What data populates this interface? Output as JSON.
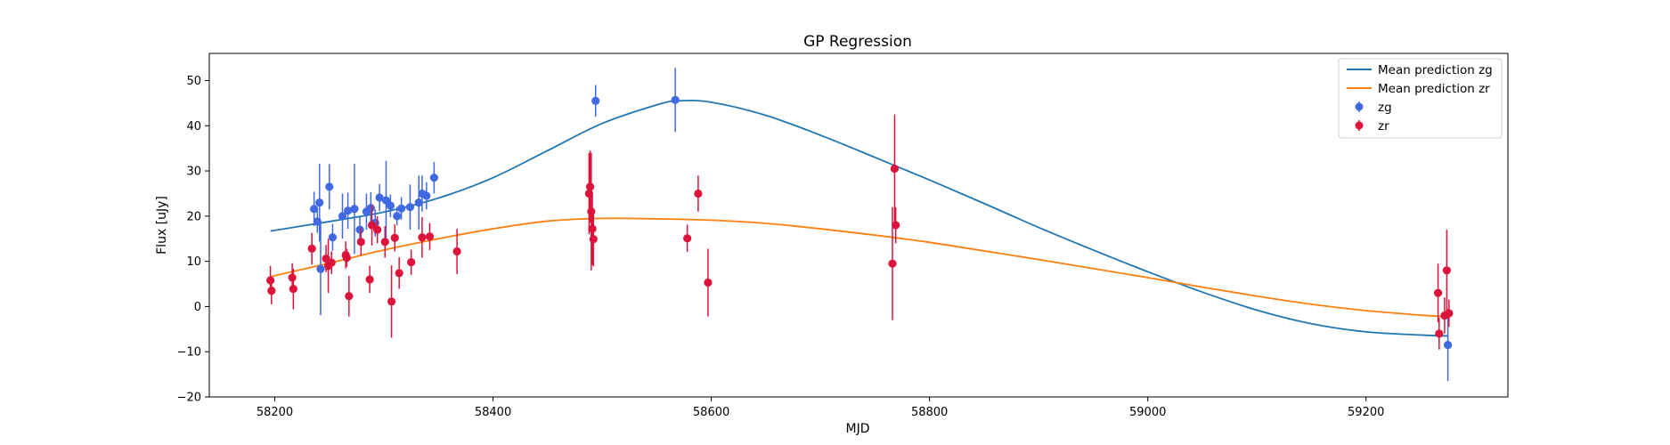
{
  "chart_data": {
    "type": "scatter",
    "title": "GP Regression",
    "xlabel": "MJD",
    "ylabel": "Flux [uJy]",
    "xlim": [
      58140,
      59330
    ],
    "ylim": [
      -20,
      56
    ],
    "xticks": [
      58200,
      58400,
      58600,
      58800,
      59000,
      59200
    ],
    "yticks": [
      -20,
      -10,
      0,
      10,
      20,
      30,
      40,
      50
    ],
    "grid": false,
    "legend_position": "top-right",
    "lines": [
      {
        "name": "Mean prediction zg",
        "color": "#1f77b4",
        "x": [
          58196,
          58250,
          58300,
          58350,
          58400,
          58450,
          58500,
          58550,
          58570,
          58600,
          58650,
          58700,
          58750,
          58800,
          58850,
          58900,
          58950,
          59000,
          59050,
          59100,
          59150,
          59200,
          59250,
          59275
        ],
        "y": [
          16.7,
          18.8,
          20.9,
          24.0,
          28.5,
          34.5,
          40.5,
          44.6,
          45.5,
          45.2,
          42.3,
          37.9,
          33.0,
          28.0,
          22.8,
          17.5,
          12.5,
          7.7,
          3.2,
          -0.8,
          -3.8,
          -5.6,
          -6.3,
          -6.5
        ]
      },
      {
        "name": "Mean prediction zr",
        "color": "#ff7f0e",
        "x": [
          58196,
          58250,
          58300,
          58350,
          58400,
          58450,
          58500,
          58550,
          58600,
          58650,
          58700,
          58750,
          58800,
          58850,
          58900,
          58950,
          59000,
          59050,
          59100,
          59150,
          59200,
          59250,
          59275
        ],
        "y": [
          6.6,
          9.6,
          12.5,
          15.0,
          17.2,
          18.9,
          19.5,
          19.4,
          19.1,
          18.4,
          17.2,
          15.8,
          14.2,
          12.3,
          10.4,
          8.4,
          6.4,
          4.3,
          2.3,
          0.5,
          -0.9,
          -1.9,
          -2.3
        ]
      }
    ],
    "series": [
      {
        "name": "zg",
        "color": "#4169e1",
        "points": [
          [
            58236,
            21.6,
            3.8
          ],
          [
            58239,
            18.8,
            2.5
          ],
          [
            58241,
            23.0,
            8.6
          ],
          [
            58242,
            8.3,
            10.2
          ],
          [
            58250,
            26.5,
            5.0
          ],
          [
            58253,
            15.3,
            3.0
          ],
          [
            58262,
            20.0,
            5.0
          ],
          [
            58267,
            21.2,
            4.0
          ],
          [
            58273,
            21.6,
            10.0
          ],
          [
            58278,
            17.0,
            3.0
          ],
          [
            58284,
            21.0,
            4.0
          ],
          [
            58288,
            21.8,
            3.5
          ],
          [
            58292,
            18.5,
            3.0
          ],
          [
            58296,
            24.1,
            3.0
          ],
          [
            58302,
            23.5,
            8.7
          ],
          [
            58306,
            22.3,
            2.5
          ],
          [
            58312,
            20.0,
            2.0
          ],
          [
            58316,
            21.7,
            2.5
          ],
          [
            58324,
            22.0,
            5.0
          ],
          [
            58332,
            23.0,
            6.0
          ],
          [
            58335,
            25.0,
            4.0
          ],
          [
            58339,
            24.5,
            3.0
          ],
          [
            58346,
            28.5,
            3.5
          ],
          [
            58494,
            45.5,
            3.5
          ],
          [
            58567,
            45.7,
            7.1
          ],
          [
            59275,
            -8.5,
            8.0
          ]
        ]
      },
      {
        "name": "zr",
        "color": "#dc143c",
        "points": [
          [
            58196,
            5.8,
            3.2
          ],
          [
            58197,
            3.5,
            3.0
          ],
          [
            58216,
            6.4,
            3.2
          ],
          [
            58217,
            3.9,
            4.5
          ],
          [
            58234,
            12.8,
            3.5
          ],
          [
            58247,
            10.6,
            3.0
          ],
          [
            58249,
            9.0,
            6.0
          ],
          [
            58252,
            9.7,
            2.5
          ],
          [
            58265,
            11.4,
            3.0
          ],
          [
            58266,
            10.8,
            2.0
          ],
          [
            58268,
            2.3,
            4.5
          ],
          [
            58279,
            14.3,
            3.0
          ],
          [
            58287,
            6.0,
            3.0
          ],
          [
            58289,
            18.0,
            4.5
          ],
          [
            58294,
            17.0,
            3.0
          ],
          [
            58301,
            14.3,
            3.5
          ],
          [
            58307,
            1.1,
            8.0
          ],
          [
            58310,
            15.2,
            3.0
          ],
          [
            58314,
            7.4,
            3.5
          ],
          [
            58325,
            9.8,
            2.8
          ],
          [
            58335,
            15.3,
            4.5
          ],
          [
            58342,
            15.5,
            3.0
          ],
          [
            58367,
            12.2,
            5.0
          ],
          [
            58488,
            25.0,
            9.0
          ],
          [
            58489,
            26.5,
            8.0
          ],
          [
            58490,
            21.0,
            13.0
          ],
          [
            58491,
            17.2,
            8.0
          ],
          [
            58492,
            14.9,
            6.0
          ],
          [
            58578,
            15.1,
            3.0
          ],
          [
            58588,
            25.0,
            4.0
          ],
          [
            58597,
            5.3,
            7.5
          ],
          [
            58766,
            9.5,
            12.5
          ],
          [
            58768,
            30.5,
            12.0
          ],
          [
            58769,
            18.0,
            4.0
          ],
          [
            59266,
            3.0,
            6.5
          ],
          [
            59267,
            -6.0,
            3.5
          ],
          [
            59272,
            -2.0,
            4.0
          ],
          [
            59274,
            8.0,
            9.0
          ],
          [
            59276,
            -1.5,
            3.0
          ]
        ]
      }
    ]
  }
}
